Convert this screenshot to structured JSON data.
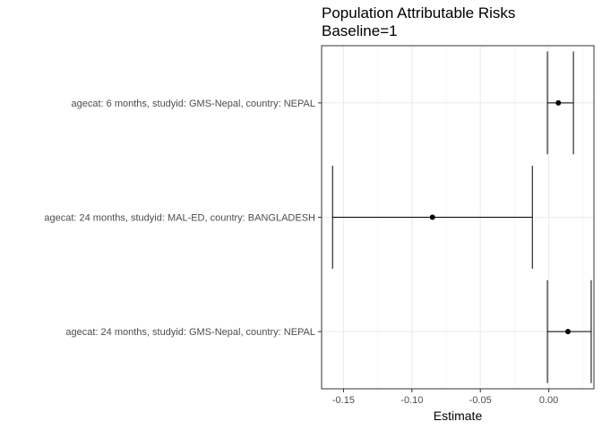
{
  "chart_data": {
    "type": "forest",
    "title": "Population Attributable Risks",
    "subtitle": "Baseline=1",
    "xlabel": "Estimate",
    "ylabel": "",
    "xlim": [
      -0.166,
      0.033
    ],
    "x_ticks": [
      -0.15,
      -0.1,
      -0.05,
      0.0
    ],
    "x_tick_labels": [
      "-0.15",
      "-0.10",
      "-0.05",
      "0.00"
    ],
    "grid": true,
    "rows": [
      {
        "label": "agecat: 6 months, studyid: GMS-Nepal, country: NEPAL",
        "estimate": 0.007,
        "lower": -0.001,
        "upper": 0.018
      },
      {
        "label": "agecat: 24 months, studyid: MAL-ED, country: BANGLADESH",
        "estimate": -0.085,
        "lower": -0.158,
        "upper": -0.012
      },
      {
        "label": "agecat: 24 months, studyid: GMS-Nepal, country: NEPAL",
        "estimate": 0.014,
        "lower": -0.001,
        "upper": 0.031
      }
    ]
  }
}
